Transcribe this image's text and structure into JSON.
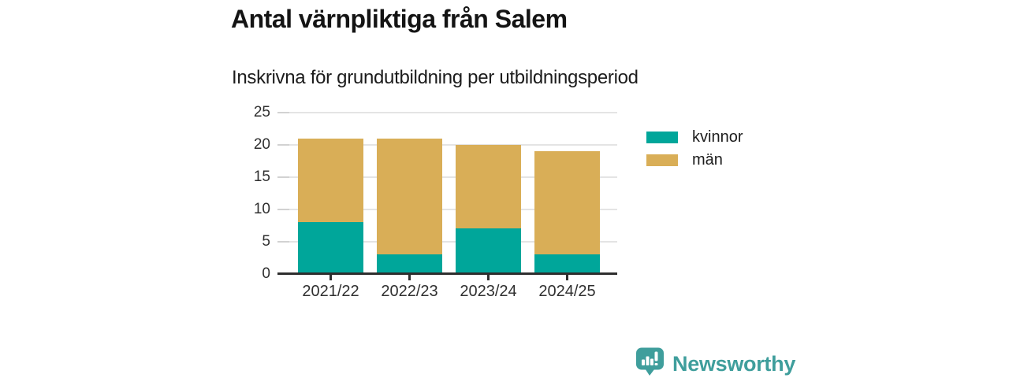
{
  "title": "Antal värnpliktiga från Salem",
  "subtitle": "Inskrivna för grundutbildning per utbildningsperiod",
  "chart_data": {
    "type": "bar",
    "stacked": true,
    "title": "Antal värnpliktiga från Salem",
    "subtitle": "Inskrivna för grundutbildning per utbildningsperiod",
    "categories": [
      "2021/22",
      "2022/23",
      "2023/24",
      "2024/25"
    ],
    "series": [
      {
        "name": "kvinnor",
        "color": "#00a69a",
        "values": [
          8,
          3,
          7,
          3
        ]
      },
      {
        "name": "män",
        "color": "#d9ae57",
        "values": [
          13,
          18,
          13,
          16
        ]
      }
    ],
    "stack_totals": [
      21,
      21,
      20,
      19
    ],
    "xlabel": "",
    "ylabel": "",
    "ylim": [
      0,
      25
    ],
    "yticks": [
      0,
      5,
      10,
      15,
      20,
      25
    ],
    "grid": true,
    "legend_position": "right"
  },
  "axis": {
    "axis_line_color": "#2e2e2e",
    "gridline_color": "#e4e4e4",
    "tick_label_color": "#2f2f2f"
  },
  "branding": {
    "logo_text": "Newsworthy",
    "logo_color": "#3f9e9c",
    "icon": "newsworthy-speech-bubble-bar-chart-icon"
  }
}
